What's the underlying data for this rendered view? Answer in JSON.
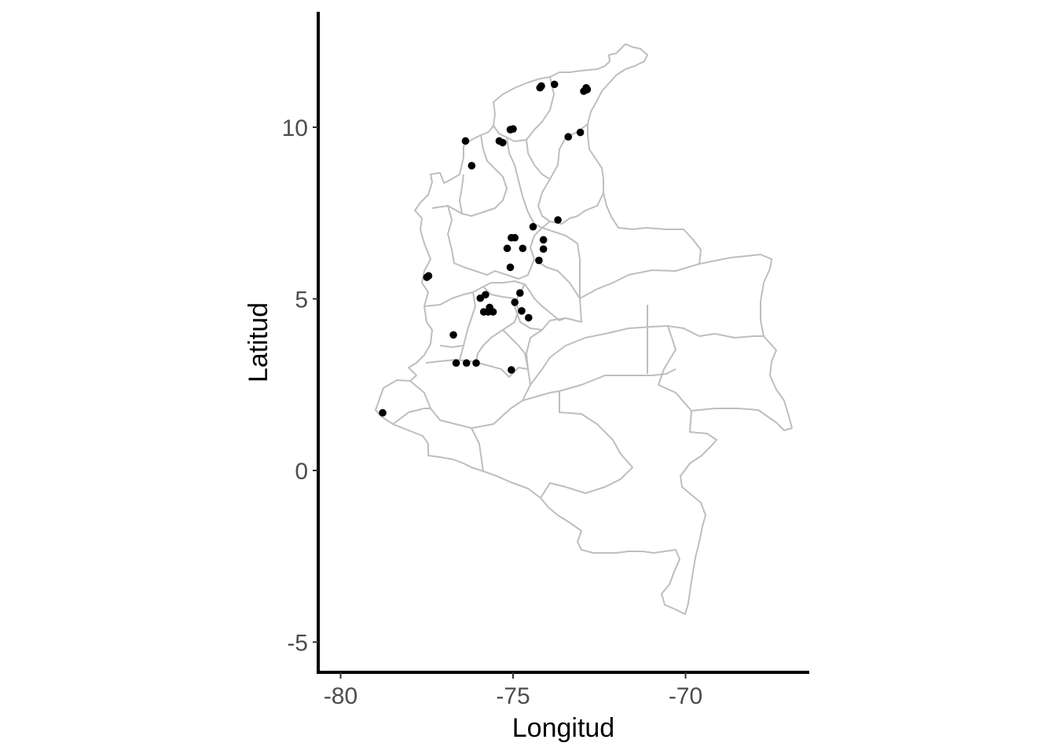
{
  "chart_data": {
    "type": "scatter",
    "subtype": "map",
    "title": "",
    "xlabel": "Longitud",
    "ylabel": "Latitud",
    "xlim": [
      -80.6,
      -66.5
    ],
    "ylim": [
      -5.85,
      13.4
    ],
    "x_ticks": [
      -80,
      -75,
      -70
    ],
    "y_ticks": [
      -5,
      0,
      5,
      10
    ],
    "x_tick_labels": [
      "-80",
      "-75",
      "-70"
    ],
    "y_tick_labels": [
      "-5",
      "0",
      "5",
      "10"
    ],
    "grid": false,
    "legend": "none",
    "colors": {
      "points": "#000000",
      "boundaries": "#bebebe",
      "axes": "#000000",
      "ticks": "#4d4d4d"
    },
    "basemap": "Colombia department boundaries (outline only)",
    "points": [
      {
        "x": -78.78,
        "y": 1.68
      },
      {
        "x": -77.45,
        "y": 5.67
      },
      {
        "x": -77.5,
        "y": 5.63
      },
      {
        "x": -76.73,
        "y": 3.95
      },
      {
        "x": -76.65,
        "y": 3.13
      },
      {
        "x": -76.35,
        "y": 3.13
      },
      {
        "x": -76.07,
        "y": 3.13
      },
      {
        "x": -75.05,
        "y": 2.93
      },
      {
        "x": -75.85,
        "y": 4.62
      },
      {
        "x": -75.72,
        "y": 4.62
      },
      {
        "x": -75.58,
        "y": 4.62
      },
      {
        "x": -75.68,
        "y": 4.75
      },
      {
        "x": -75.95,
        "y": 5.02
      },
      {
        "x": -75.8,
        "y": 5.12
      },
      {
        "x": -74.95,
        "y": 4.9
      },
      {
        "x": -74.8,
        "y": 5.17
      },
      {
        "x": -74.75,
        "y": 4.65
      },
      {
        "x": -74.55,
        "y": 4.45
      },
      {
        "x": -75.08,
        "y": 5.92
      },
      {
        "x": -75.17,
        "y": 6.47
      },
      {
        "x": -74.72,
        "y": 6.47
      },
      {
        "x": -75.05,
        "y": 6.78
      },
      {
        "x": -74.95,
        "y": 6.78
      },
      {
        "x": -74.25,
        "y": 6.12
      },
      {
        "x": -74.12,
        "y": 6.45
      },
      {
        "x": -74.12,
        "y": 6.72
      },
      {
        "x": -74.42,
        "y": 7.1
      },
      {
        "x": -73.7,
        "y": 7.3
      },
      {
        "x": -76.2,
        "y": 8.88
      },
      {
        "x": -76.38,
        "y": 9.6
      },
      {
        "x": -75.4,
        "y": 9.6
      },
      {
        "x": -75.3,
        "y": 9.55
      },
      {
        "x": -75.0,
        "y": 9.95
      },
      {
        "x": -75.08,
        "y": 9.93
      },
      {
        "x": -73.4,
        "y": 9.72
      },
      {
        "x": -73.05,
        "y": 9.85
      },
      {
        "x": -74.22,
        "y": 11.15
      },
      {
        "x": -74.18,
        "y": 11.2
      },
      {
        "x": -73.8,
        "y": 11.25
      },
      {
        "x": -72.95,
        "y": 11.05
      },
      {
        "x": -72.88,
        "y": 11.15
      },
      {
        "x": -72.85,
        "y": 11.1
      }
    ]
  }
}
